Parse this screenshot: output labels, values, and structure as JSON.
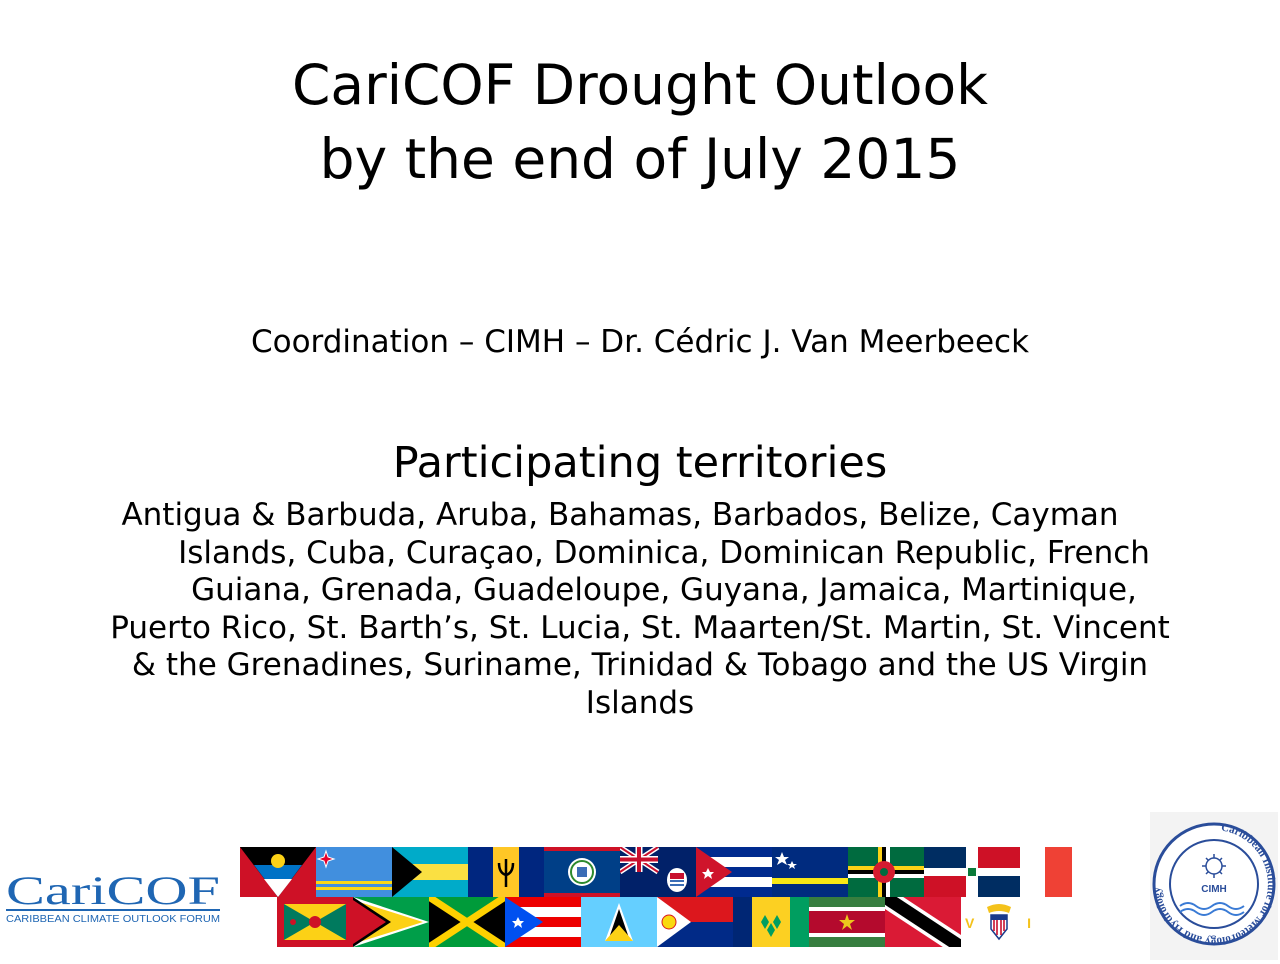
{
  "title": {
    "line1": "CariCOF Drought Outlook",
    "line2": "by the end of July 2015"
  },
  "coordination": "Coordination – CIMH – Dr. Cédric J. Van Meerbeeck",
  "territories": {
    "heading": "Participating territories",
    "lines": [
      "Antigua & Barbuda, Aruba, Bahamas, Barbados, Belize, Cayman",
      "Islands, Cuba, Curaçao, Dominica, Dominican Republic, French",
      "Guiana, Grenada, Guadeloupe, Guyana, Jamaica, Martinique,",
      "Puerto Rico, St. Barth’s, St. Lucia, St. Maarten/St. Martin, St. Vincent",
      "& the Grenadines, Suriname, Trinidad & Tobago and the US Virgin",
      "Islands"
    ]
  },
  "logos": {
    "caricof_wordmark": "CariCOF",
    "caricof_tagline": "CARIBBEAN CLIMATE OUTLOOK FORUM",
    "cimh_ring": "Caribbean Institute for Meteorology and Hydrology",
    "cimh_center": "CIMH"
  },
  "flags": {
    "top_row": [
      "antigua-barbuda",
      "aruba",
      "bahamas",
      "barbados",
      "belize",
      "cayman-islands",
      "cuba",
      "curacao",
      "dominica",
      "dominican-republic",
      "france"
    ],
    "bottom_row": [
      "grenada",
      "guyana",
      "jamaica",
      "puerto-rico",
      "st-lucia",
      "sint-maarten",
      "st-vincent",
      "suriname",
      "trinidad-tobago",
      "us-virgin-islands"
    ],
    "usvi_label": "V I"
  },
  "colors": {
    "caricof_blue": "#1f66b3",
    "cimh_blue": "#2a4d9a"
  }
}
